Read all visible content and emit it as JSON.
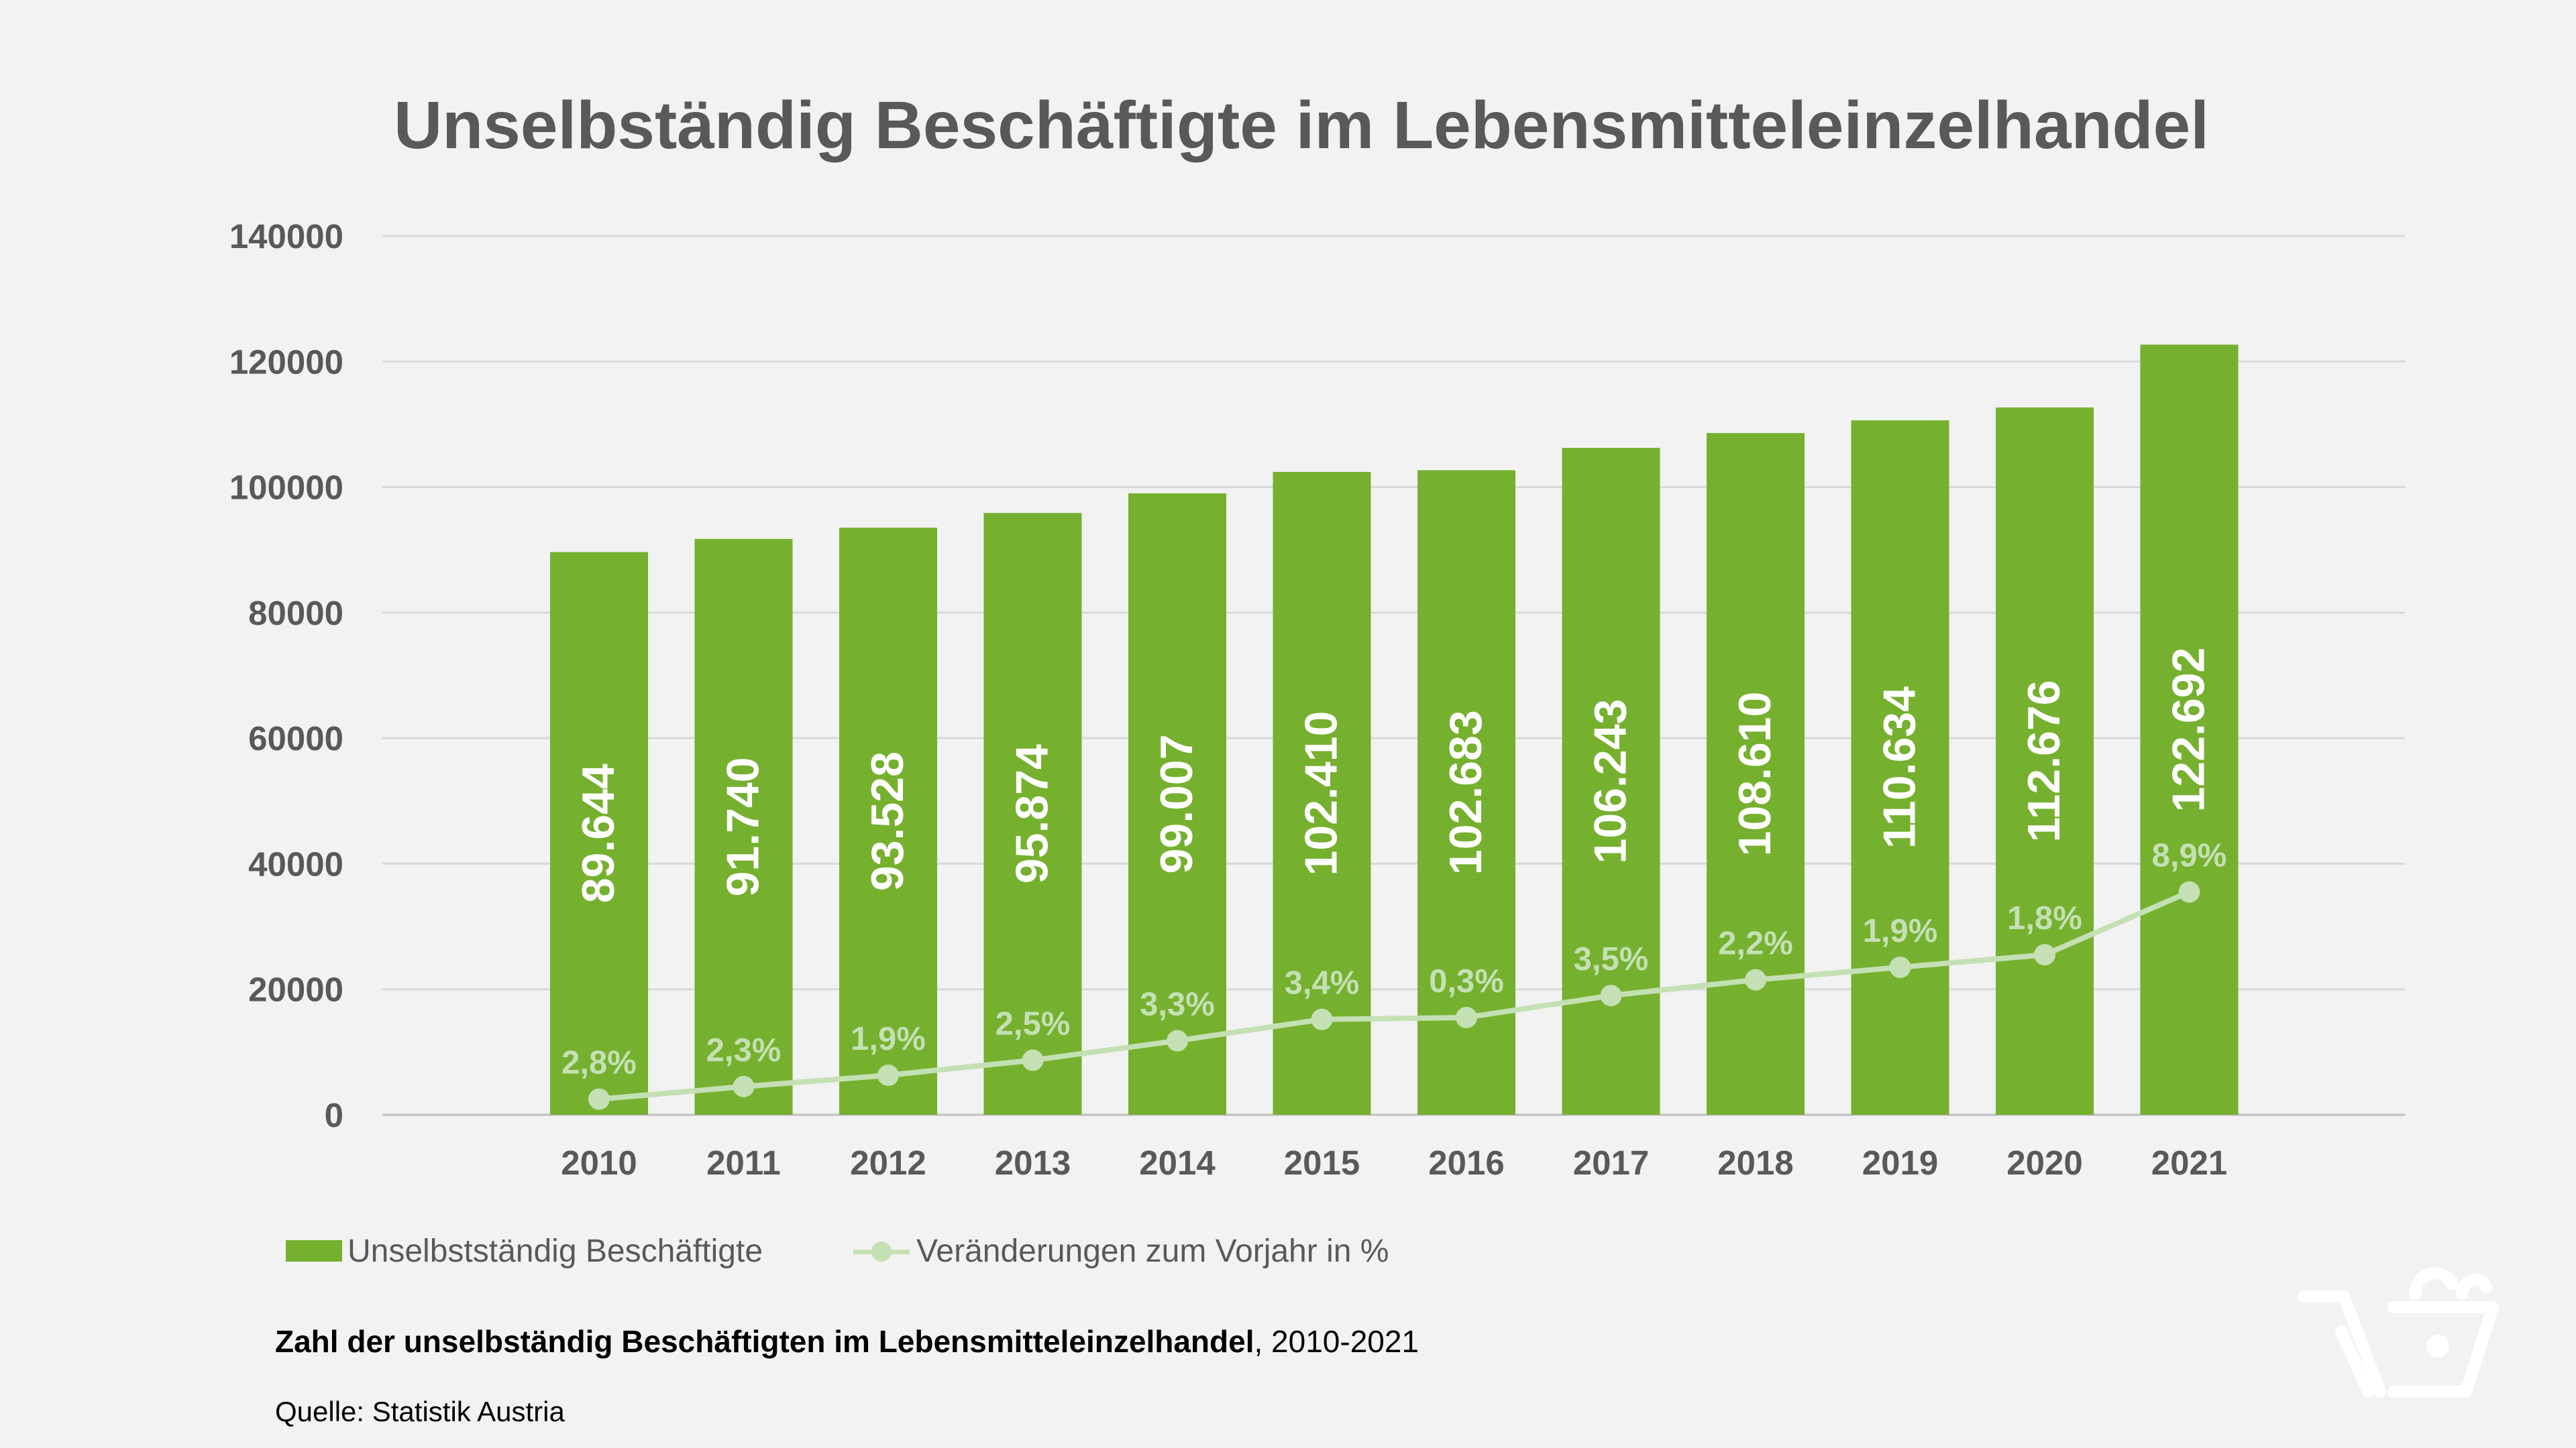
{
  "chart_data": {
    "type": "bar",
    "title": "Unselbständig Beschäftigte im Lebensmitteleinzelhandel",
    "categories": [
      "2010",
      "2011",
      "2012",
      "2013",
      "2014",
      "2015",
      "2016",
      "2017",
      "2018",
      "2019",
      "2020",
      "2021"
    ],
    "series": [
      {
        "name": "Unselbstständig Beschäftigte",
        "type": "bar",
        "color": "#76b02f",
        "values": [
          89644,
          91740,
          93528,
          95874,
          99007,
          102410,
          102683,
          106243,
          108610,
          110634,
          112676,
          122692
        ],
        "labels": [
          "89.644",
          "91.740",
          "93.528",
          "95.874",
          "99.007",
          "102.410",
          "102.683",
          "106.243",
          "108.610",
          "110.634",
          "112.676",
          "122.692"
        ]
      },
      {
        "name": "Veränderungen zum Vorjahr in %",
        "type": "line",
        "color": "#c5e0b4",
        "values": [
          2500,
          4500,
          6300,
          8700,
          11800,
          15200,
          15500,
          19000,
          21500,
          23500,
          25500,
          35500
        ],
        "labels": [
          "2,8%",
          "2,3%",
          "1,9%",
          "2,5%",
          "3,3%",
          "3,4%",
          "0,3%",
          "3,5%",
          "2,2%",
          "1,9%",
          "1,8%",
          "8,9%"
        ]
      }
    ],
    "ylim": [
      0,
      140000
    ],
    "yticks": [
      0,
      20000,
      40000,
      60000,
      80000,
      100000,
      120000,
      140000
    ],
    "grid": true,
    "legend": "bottom-left"
  },
  "caption": {
    "bold": "Zahl der unselbständig Beschäftigten im Lebensmitteleinzelhandel",
    "rest": ", 2010-2021"
  },
  "source": "Quelle: Statistik Austria",
  "logo_icon": "shopping-basket-icon"
}
